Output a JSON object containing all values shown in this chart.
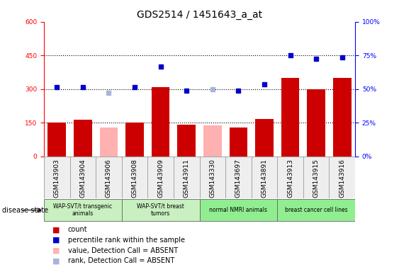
{
  "title": "GDS2514 / 1451643_a_at",
  "samples": [
    "GSM143903",
    "GSM143904",
    "GSM143906",
    "GSM143908",
    "GSM143909",
    "GSM143911",
    "GSM143330",
    "GSM143697",
    "GSM143891",
    "GSM143913",
    "GSM143915",
    "GSM143916"
  ],
  "count_values": [
    152,
    162,
    null,
    152,
    310,
    140,
    null,
    130,
    168,
    350,
    300,
    350
  ],
  "count_absent": [
    null,
    null,
    130,
    null,
    null,
    null,
    138,
    null,
    null,
    null,
    null,
    null
  ],
  "rank_values": [
    310,
    310,
    null,
    310,
    400,
    292,
    null,
    292,
    320,
    450,
    435,
    442
  ],
  "rank_absent": [
    null,
    null,
    285,
    null,
    null,
    null,
    298,
    null,
    null,
    null,
    null,
    null
  ],
  "absent_flags": [
    false,
    false,
    true,
    false,
    false,
    false,
    true,
    false,
    false,
    false,
    false,
    false
  ],
  "groups": [
    {
      "label": "WAP-SVT/t transgenic\nanimals",
      "start": 0,
      "end": 3,
      "color": "#c8f0c0"
    },
    {
      "label": "WAP-SVT/t breast\ntumors",
      "start": 3,
      "end": 6,
      "color": "#c8f0c0"
    },
    {
      "label": "normal NMRI animals",
      "start": 6,
      "end": 9,
      "color": "#90ee90"
    },
    {
      "label": "breast cancer cell lines",
      "start": 9,
      "end": 12,
      "color": "#90ee90"
    }
  ],
  "ylim_left": [
    0,
    600
  ],
  "ylim_right": [
    0,
    100
  ],
  "yticks_left": [
    0,
    150,
    300,
    450,
    600
  ],
  "yticks_right": [
    0,
    25,
    50,
    75,
    100
  ],
  "bar_color": "#cc0000",
  "bar_absent_color": "#ffb0b0",
  "dot_color": "#0000cc",
  "dot_absent_color": "#aab4d8",
  "title_fontsize": 10,
  "tick_fontsize": 6.5,
  "label_fontsize": 7.5
}
